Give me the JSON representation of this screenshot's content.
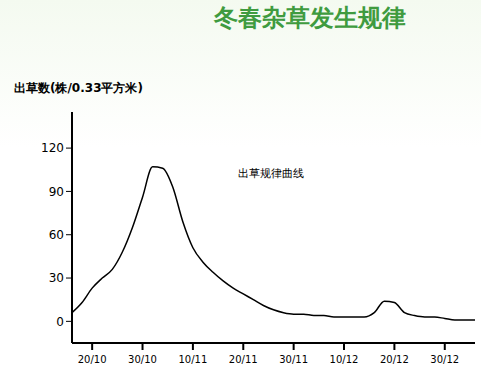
{
  "chart_data": {
    "type": "line",
    "title": "冬春杂草发生规律",
    "y_label": "出草数(株/0.33平方米)",
    "annotations": [
      "出草规律曲线"
    ],
    "categories": [
      null,
      null,
      "20/10",
      null,
      null,
      null,
      null,
      "30/10",
      null,
      null,
      null,
      null,
      "10/11",
      null,
      null,
      null,
      null,
      "20/11",
      null,
      null,
      null,
      null,
      "30/11",
      null,
      null,
      null,
      null,
      "10/12",
      null,
      null,
      null,
      null,
      "20/12",
      null,
      null,
      null,
      null,
      "30/12",
      null,
      null,
      null
    ],
    "series": [
      {
        "name": "出草规律曲线",
        "color": "#000000",
        "values": [
          6,
          13,
          23,
          30,
          36,
          48,
          65,
          86,
          107,
          106,
          93,
          69,
          51,
          41,
          34,
          28,
          23,
          19,
          15,
          11,
          8,
          6,
          5,
          5,
          4,
          4,
          3,
          3,
          3,
          3,
          6,
          14,
          13,
          6,
          4,
          3,
          3,
          2,
          1,
          1,
          1
        ]
      }
    ],
    "ylim": [
      -15,
      145
    ],
    "yticks": [
      0,
      30,
      60,
      90,
      120
    ],
    "grid": false,
    "legend": false
  }
}
